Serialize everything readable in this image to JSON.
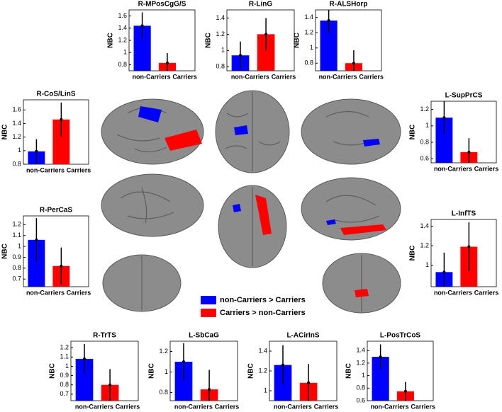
{
  "chart_data": [
    {
      "type": "bar",
      "title": "R-MPosCgG/S",
      "ylabel": "NBC",
      "categories": [
        "non-Carriers",
        "Carriers"
      ],
      "values": [
        1.44,
        0.83
      ],
      "errors": [
        0.22,
        0.16
      ],
      "colors": [
        "#0000ff",
        "#ff0000"
      ],
      "ylim": [
        0.7,
        1.7
      ],
      "yticks": [
        0.8,
        1,
        1.2,
        1.4,
        1.6
      ]
    },
    {
      "type": "bar",
      "title": "R-LinG",
      "ylabel": "NBC",
      "categories": [
        "non-Carriers",
        "Carriers"
      ],
      "values": [
        0.94,
        1.2
      ],
      "errors": [
        0.17,
        0.2
      ],
      "colors": [
        "#0000ff",
        "#ff0000"
      ],
      "ylim": [
        0.75,
        1.5
      ],
      "yticks": [
        0.8,
        1,
        1.2,
        1.4
      ]
    },
    {
      "type": "bar",
      "title": "R-ALSHorp",
      "ylabel": "NBC",
      "categories": [
        "non-Carriers",
        "Carriers"
      ],
      "values": [
        1.36,
        0.8
      ],
      "errors": [
        0.16,
        0.17
      ],
      "colors": [
        "#0000ff",
        "#ff0000"
      ],
      "ylim": [
        0.7,
        1.5
      ],
      "yticks": [
        0.8,
        1,
        1.2,
        1.4
      ]
    },
    {
      "type": "bar",
      "title": "R-CoS/LinS",
      "ylabel": "NBC",
      "categories": [
        "non-Carriers",
        "Carriers"
      ],
      "values": [
        0.99,
        1.46
      ],
      "errors": [
        0.18,
        0.25
      ],
      "colors": [
        "#0000ff",
        "#ff0000"
      ],
      "ylim": [
        0.8,
        1.75
      ],
      "yticks": [
        0.8,
        1,
        1.2,
        1.4,
        1.6
      ]
    },
    {
      "type": "bar",
      "title": "L-SupPrCS",
      "ylabel": "NBC",
      "categories": [
        "non-Carriers",
        "Carriers"
      ],
      "values": [
        1.1,
        0.68
      ],
      "errors": [
        0.2,
        0.17
      ],
      "colors": [
        "#0000ff",
        "#ff0000"
      ],
      "ylim": [
        0.55,
        1.3
      ],
      "yticks": [
        0.6,
        0.8,
        1,
        1.2
      ]
    },
    {
      "type": "bar",
      "title": "R-PerCaS",
      "ylabel": "NBC",
      "categories": [
        "non-Carriers",
        "Carriers"
      ],
      "values": [
        1.06,
        0.82
      ],
      "errors": [
        0.2,
        0.17
      ],
      "colors": [
        "#0000ff",
        "#ff0000"
      ],
      "ylim": [
        0.63,
        1.28
      ],
      "yticks": [
        0.7,
        0.8,
        0.9,
        1,
        1.1,
        1.2
      ]
    },
    {
      "type": "bar",
      "title": "L-InfTS",
      "ylabel": "NBC",
      "categories": [
        "non-Carriers",
        "Carriers"
      ],
      "values": [
        0.93,
        1.19
      ],
      "errors": [
        0.2,
        0.25
      ],
      "colors": [
        "#0000ff",
        "#ff0000"
      ],
      "ylim": [
        0.78,
        1.47
      ],
      "yticks": [
        1,
        1.2,
        1.4
      ]
    },
    {
      "type": "bar",
      "title": "R-TrTS",
      "ylabel": "NBC",
      "categories": [
        "non-Carriers",
        "Carriers"
      ],
      "values": [
        1.08,
        0.8
      ],
      "errors": [
        0.16,
        0.17
      ],
      "colors": [
        "#0000ff",
        "#ff0000"
      ],
      "ylim": [
        0.63,
        1.27
      ],
      "yticks": [
        0.7,
        0.8,
        0.9,
        1,
        1.1,
        1.2
      ]
    },
    {
      "type": "bar",
      "title": "L-SbCaG",
      "ylabel": "NBC",
      "categories": [
        "non-Carriers",
        "Carriers"
      ],
      "values": [
        1.1,
        0.83
      ],
      "errors": [
        0.18,
        0.19
      ],
      "colors": [
        "#0000ff",
        "#ff0000"
      ],
      "ylim": [
        0.72,
        1.3
      ],
      "yticks": [
        0.8,
        1,
        1.2
      ]
    },
    {
      "type": "bar",
      "title": "L-ACirInS",
      "ylabel": "NBC",
      "categories": [
        "non-Carriers",
        "Carriers"
      ],
      "values": [
        1.26,
        1.08
      ],
      "errors": [
        0.2,
        0.19
      ],
      "colors": [
        "#0000ff",
        "#ff0000"
      ],
      "ylim": [
        0.9,
        1.5
      ],
      "yticks": [
        1,
        1.2,
        1.4
      ]
    },
    {
      "type": "bar",
      "title": "L-PosTrCoS",
      "ylabel": "NBC",
      "categories": [
        "non-Carriers",
        "Carriers"
      ],
      "values": [
        1.3,
        0.75
      ],
      "errors": [
        0.2,
        0.15
      ],
      "colors": [
        "#0000ff",
        "#ff0000"
      ],
      "ylim": [
        0.6,
        1.55
      ],
      "yticks": [
        0.6,
        0.8,
        1,
        1.2,
        1.4
      ]
    }
  ],
  "legend": {
    "items": [
      {
        "label": "non-Carriers > Carriers",
        "color": "#0000ff"
      },
      {
        "label": "Carriers > non-Carriers",
        "color": "#ff0000"
      }
    ]
  }
}
